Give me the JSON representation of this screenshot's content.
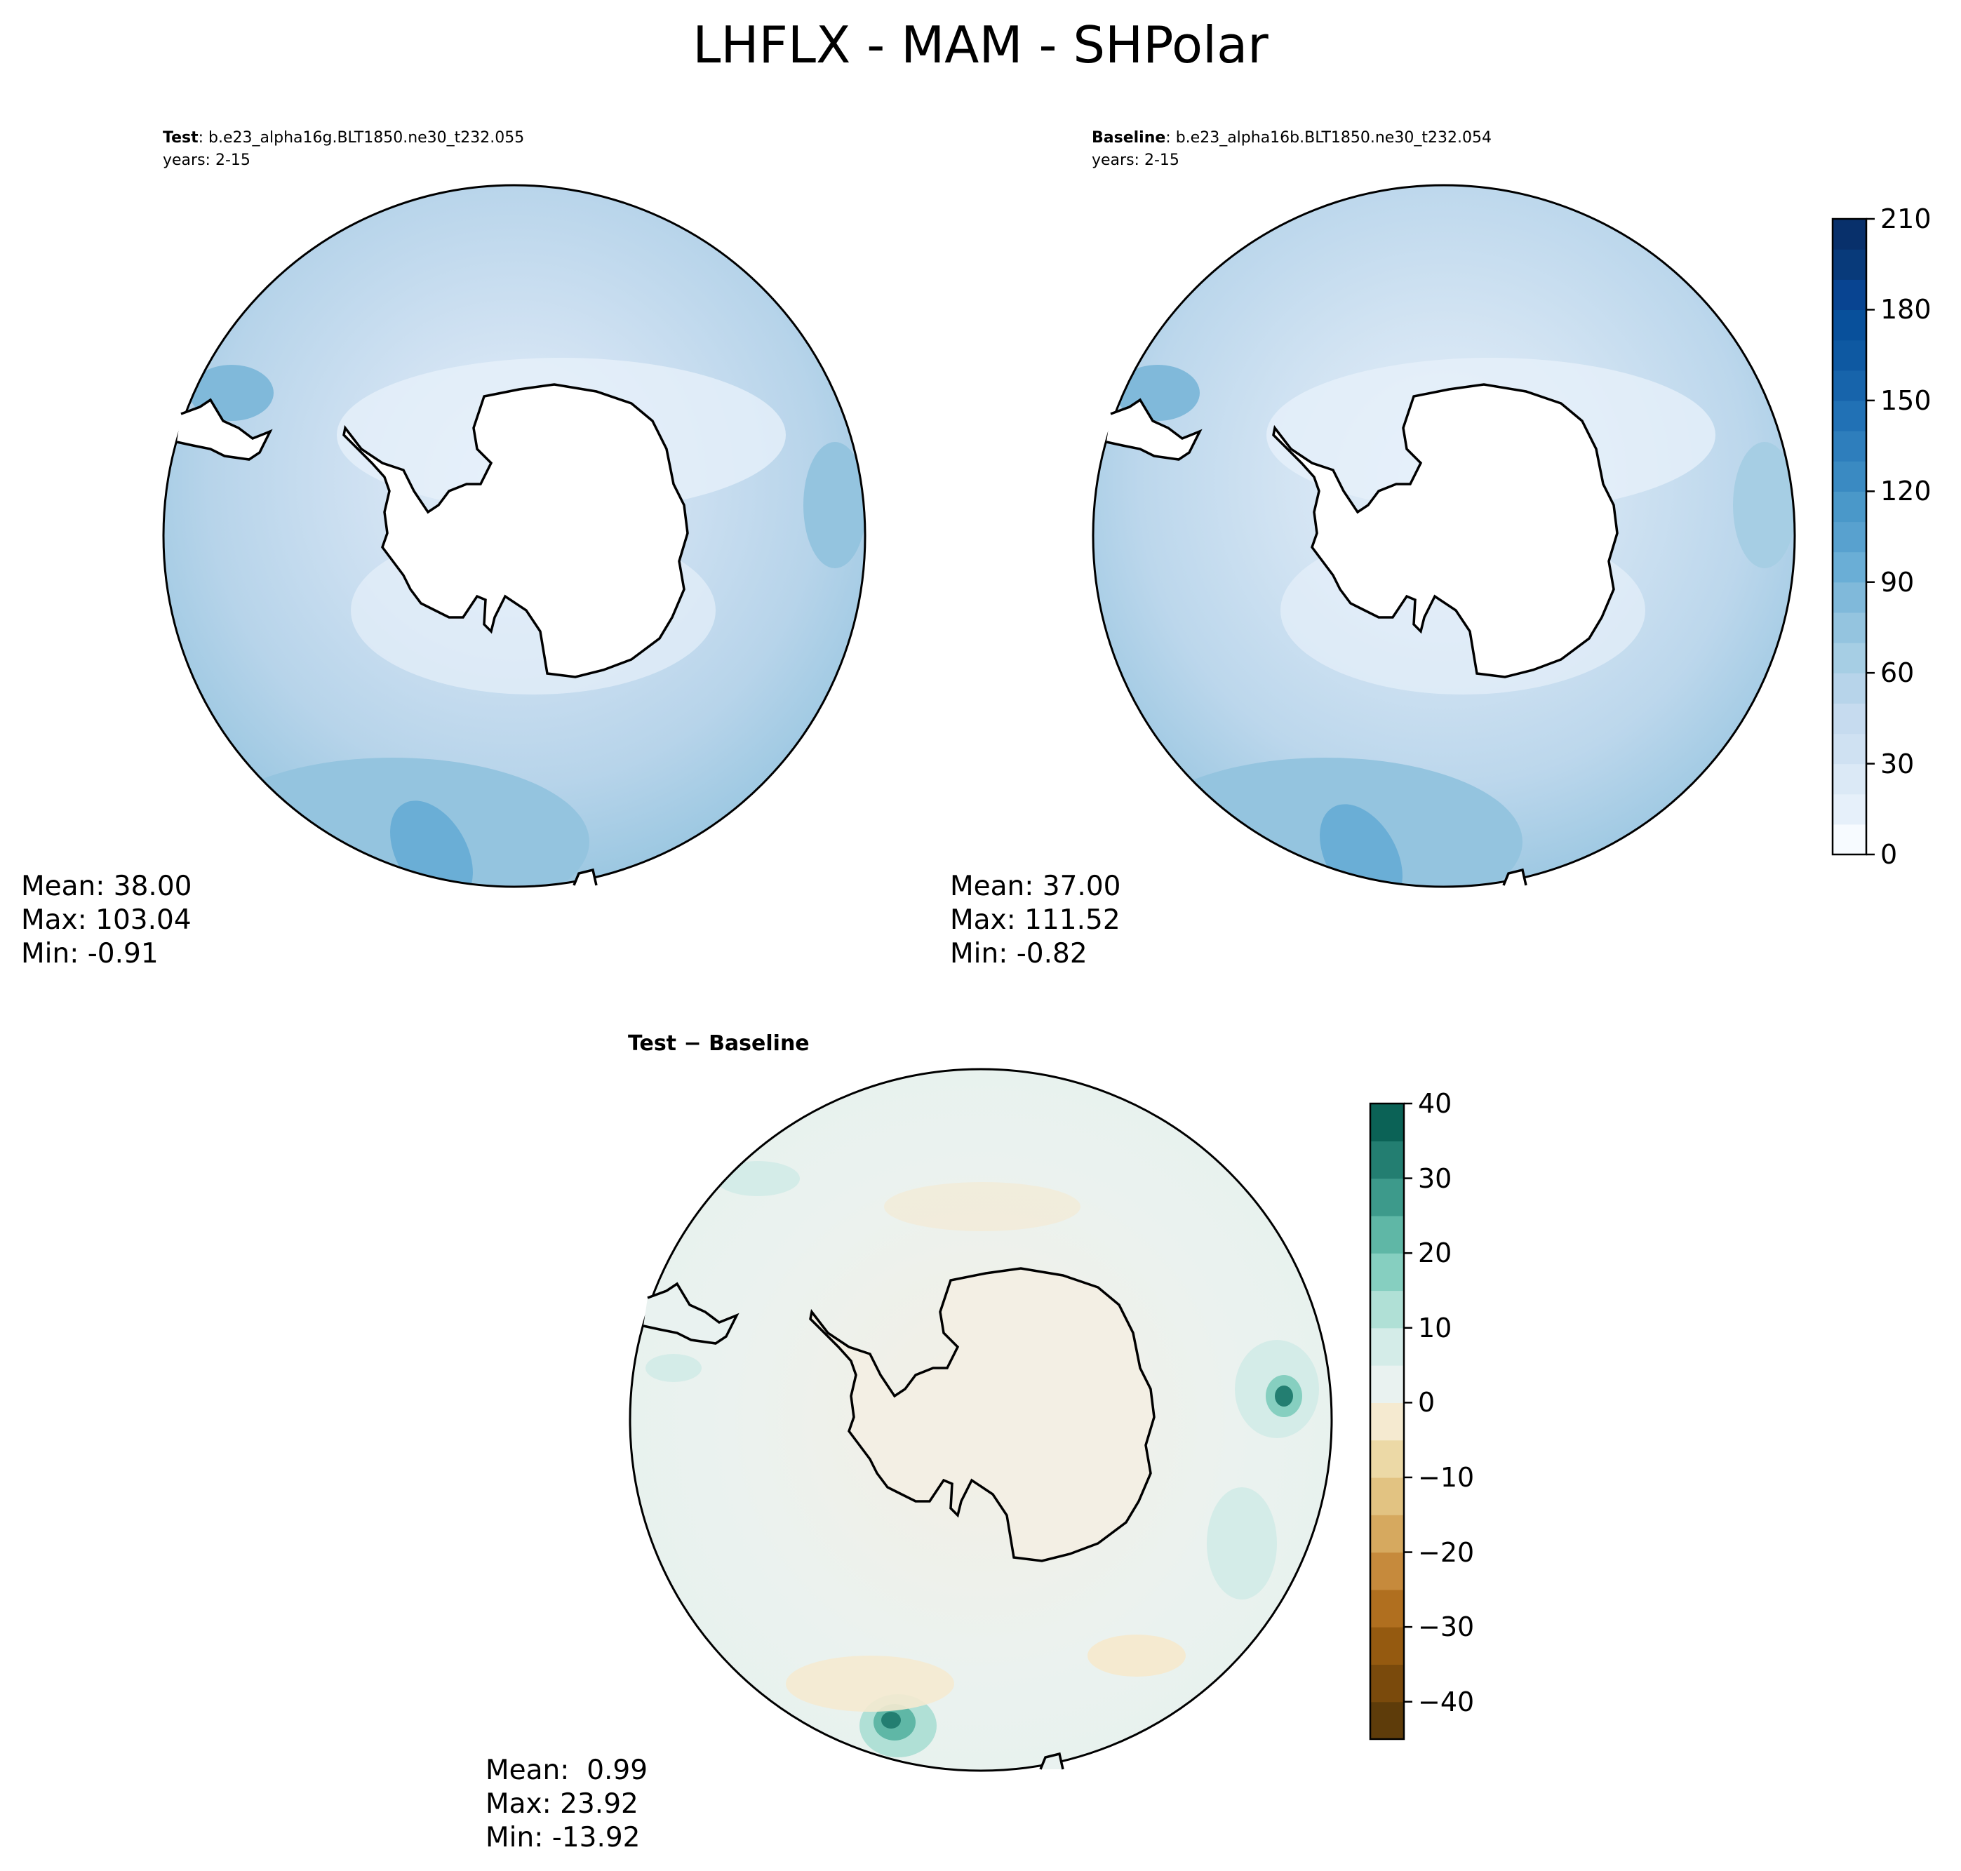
{
  "figure": {
    "title": "LHFLX - MAM - SHPolar"
  },
  "panels": {
    "test": {
      "label": "Test",
      "case": ": b.e23_alpha16g.BLT1850.ne30_t232.055",
      "years": "years: 2-15",
      "mean": "Mean: 38.00",
      "max": "Max: 103.04",
      "min": "Min: -0.91"
    },
    "baseline": {
      "label": "Baseline",
      "case": ": b.e23_alpha16b.BLT1850.ne30_t232.054",
      "years": "years: 2-15",
      "mean": "Mean: 37.00",
      "max": "Max: 111.52",
      "min": "Min: -0.82"
    },
    "diff": {
      "title_a": "Test",
      "title_sep": " − ",
      "title_b": "Baseline",
      "mean": "Mean:  0.99",
      "max": "Max: 23.92",
      "min": "Min: -13.92"
    }
  },
  "chart_data": [
    {
      "type": "heatmap",
      "projection": "south-polar-stereographic",
      "panel": "test",
      "stats": {
        "mean": 38.0,
        "max": 103.04,
        "min": -0.91
      },
      "colorbar": "shared-blues"
    },
    {
      "type": "heatmap",
      "projection": "south-polar-stereographic",
      "panel": "baseline",
      "stats": {
        "mean": 37.0,
        "max": 111.52,
        "min": -0.82
      },
      "colorbar": {
        "levels": [
          0,
          10,
          20,
          30,
          40,
          50,
          60,
          70,
          80,
          90,
          100,
          110,
          120,
          130,
          140,
          150,
          160,
          170,
          180,
          190,
          200,
          210
        ],
        "ticks": [
          0,
          30,
          60,
          90,
          120,
          150,
          180,
          210
        ],
        "colors": [
          "#f7fbff",
          "#e6f0fa",
          "#dbe9f6",
          "#cfe1f2",
          "#c6dbef",
          "#b7d4ea",
          "#a6cee4",
          "#94c4df",
          "#80b9da",
          "#6aaed6",
          "#58a1cf",
          "#4a98c9",
          "#3a8ac2",
          "#2e7ebc",
          "#2171b5",
          "#1764ab",
          "#0e59a2",
          "#08509b",
          "#084491",
          "#083a7a",
          "#08306b"
        ]
      }
    },
    {
      "type": "heatmap",
      "projection": "south-polar-stereographic",
      "panel": "diff",
      "stats": {
        "mean": 0.99,
        "max": 23.92,
        "min": -13.92
      },
      "colorbar": {
        "levels": [
          -45,
          -40,
          -35,
          -30,
          -25,
          -20,
          -15,
          -10,
          -5,
          0,
          5,
          10,
          15,
          20,
          25,
          30,
          35,
          40
        ],
        "ticks": [
          -40,
          -30,
          -20,
          -10,
          0,
          10,
          20,
          30,
          40
        ],
        "tick_labels": [
          "−40",
          "−30",
          "−20",
          "−10",
          "0",
          "10",
          "20",
          "30",
          "40"
        ],
        "colors": [
          "#5e3c0a",
          "#7a4a0c",
          "#955a10",
          "#b06f1f",
          "#c68a3c",
          "#d6a95f",
          "#e2c382",
          "#ecd9a6",
          "#f5ead0",
          "#e9f2f0",
          "#d4ece8",
          "#b0e0d6",
          "#86cfc0",
          "#5fb7a6",
          "#3d9a8b",
          "#237e71",
          "#0b6256",
          "#01473b"
        ]
      }
    }
  ]
}
